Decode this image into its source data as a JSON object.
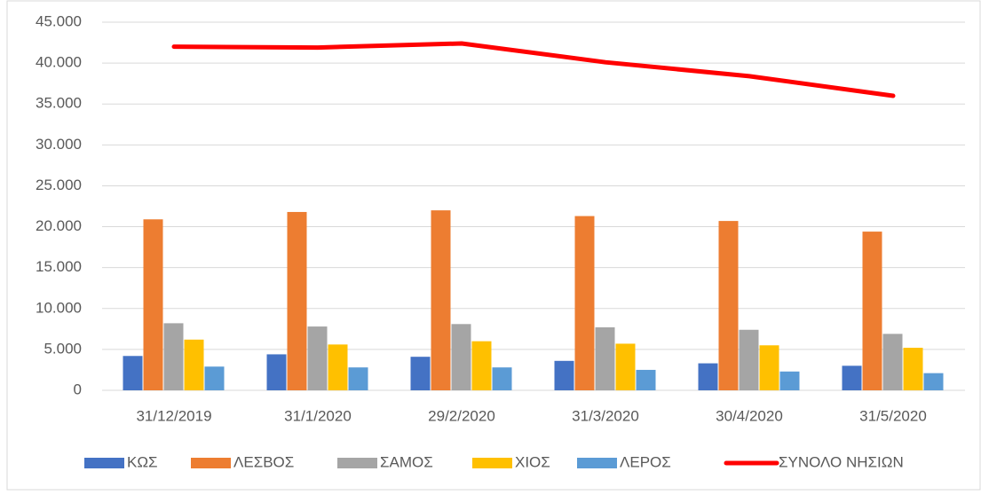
{
  "chart_data": {
    "type": "bar",
    "categories": [
      "31/12/2019",
      "31/1/2020",
      "29/2/2020",
      "31/3/2020",
      "30/4/2020",
      "31/5/2020"
    ],
    "series": [
      {
        "name": "ΚΩΣ",
        "color": "#4472c4",
        "values": [
          4200,
          4400,
          4100,
          3600,
          3300,
          3000
        ]
      },
      {
        "name": "ΛΕΣΒΟΣ",
        "color": "#ed7d31",
        "values": [
          20900,
          21800,
          22000,
          21300,
          20700,
          19400
        ]
      },
      {
        "name": "ΣΑΜΟΣ",
        "color": "#a5a5a5",
        "values": [
          8200,
          7800,
          8100,
          7700,
          7400,
          6900
        ]
      },
      {
        "name": "ΧΙΟΣ",
        "color": "#ffc000",
        "values": [
          6200,
          5600,
          6000,
          5700,
          5500,
          5200
        ]
      },
      {
        "name": "ΛΕΡΟΣ",
        "color": "#5b9bd5",
        "values": [
          2900,
          2800,
          2800,
          2500,
          2300,
          2100
        ]
      },
      {
        "name": "ΣΥΝΟΛΟ ΝΗΣΙΩΝ",
        "color": "#ff0000",
        "type": "line",
        "values": [
          42000,
          41900,
          42400,
          40100,
          38400,
          36000
        ]
      }
    ],
    "ylim": [
      0,
      45000
    ],
    "yticks": [
      0,
      {
        "value": 5000,
        "label": "5.000"
      },
      {
        "value": 10000,
        "label": "10.000"
      },
      {
        "value": 15000,
        "label": "15.000"
      },
      {
        "value": 20000,
        "label": "20.000"
      },
      {
        "value": 25000,
        "label": "25.000"
      },
      {
        "value": 30000,
        "label": "30.000"
      },
      {
        "value": 35000,
        "label": "35.000"
      },
      {
        "value": 40000,
        "label": "40.000"
      },
      {
        "value": 45000,
        "label": "45.000"
      }
    ],
    "grid": true,
    "legend": "bottom"
  }
}
